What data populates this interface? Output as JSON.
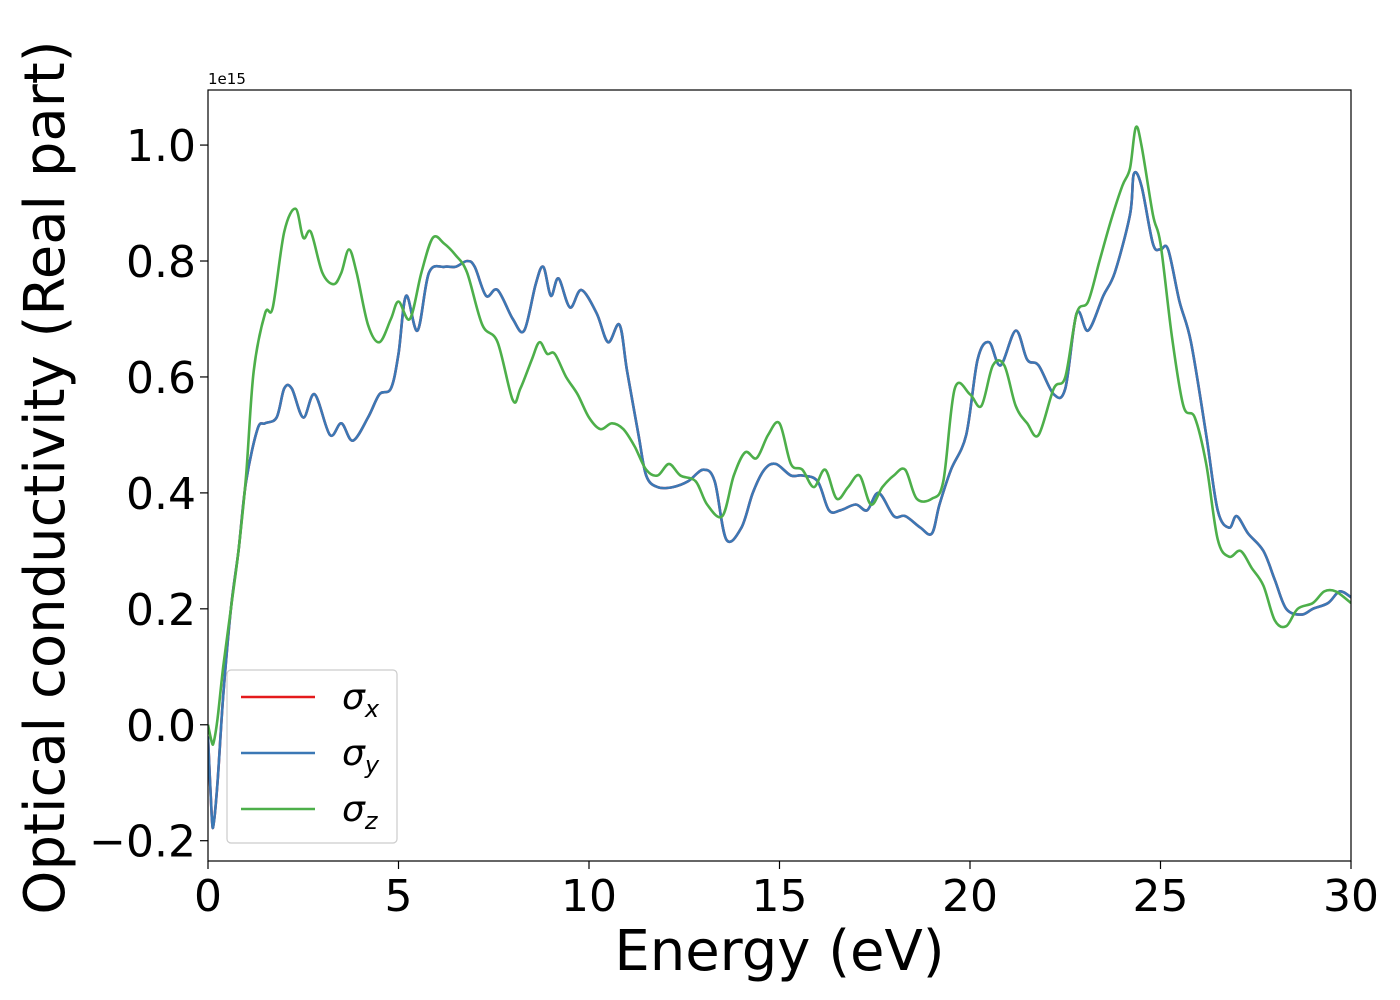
{
  "chart_data": {
    "type": "line",
    "title": "",
    "xlabel": "Energy (eV)",
    "ylabel": "Optical conductivity (Real part)",
    "y_offset_label": "1e15",
    "xlim": [
      0,
      30
    ],
    "ylim": [
      -0.235,
      1.095
    ],
    "xticks": [
      0,
      5,
      10,
      15,
      20,
      25,
      30
    ],
    "xtick_labels": [
      "0",
      "5",
      "10",
      "15",
      "20",
      "25",
      "30"
    ],
    "yticks": [
      -0.2,
      0.0,
      0.2,
      0.4,
      0.6,
      0.8,
      1.0
    ],
    "ytick_labels": [
      "−0.2",
      "0.0",
      "0.2",
      "0.4",
      "0.6",
      "0.8",
      "1.0"
    ],
    "grid": false,
    "legend_position": "lower-left",
    "series": [
      {
        "name": "σx",
        "legend_main": "σ",
        "legend_sub": "x",
        "color": "#e41a1c",
        "x": [
          0,
          0.1,
          0.15,
          0.25,
          0.4,
          0.6,
          0.8,
          1.0,
          1.3,
          1.5,
          1.8,
          2.0,
          2.2,
          2.5,
          2.8,
          3.2,
          3.5,
          3.8,
          4.2,
          4.5,
          4.8,
          5.0,
          5.2,
          5.5,
          5.8,
          6.2,
          6.5,
          6.8,
          7.0,
          7.3,
          7.6,
          8.0,
          8.3,
          8.6,
          8.8,
          9.0,
          9.2,
          9.5,
          9.8,
          10.2,
          10.5,
          10.8,
          11.0,
          11.3,
          11.5,
          11.8,
          12.2,
          12.6,
          13.0,
          13.3,
          13.6,
          14.0,
          14.3,
          14.6,
          14.9,
          15.3,
          15.6,
          16.0,
          16.3,
          16.6,
          17.0,
          17.3,
          17.6,
          18.0,
          18.3,
          18.7,
          19.0,
          19.2,
          19.5,
          19.9,
          20.2,
          20.5,
          20.8,
          21.2,
          21.5,
          21.8,
          22.2,
          22.5,
          22.8,
          23.1,
          23.5,
          23.8,
          24.2,
          24.3,
          24.5,
          24.8,
          25.0,
          25.2,
          25.5,
          25.8,
          26.2,
          26.5,
          26.8,
          27.0,
          27.3,
          27.7,
          28.0,
          28.3,
          28.7,
          29.0,
          29.4,
          29.7,
          30.0
        ],
        "y": [
          -0.02,
          -0.16,
          -0.17,
          -0.1,
          0.05,
          0.2,
          0.3,
          0.42,
          0.51,
          0.52,
          0.53,
          0.58,
          0.58,
          0.53,
          0.57,
          0.5,
          0.52,
          0.49,
          0.53,
          0.57,
          0.58,
          0.64,
          0.74,
          0.68,
          0.78,
          0.79,
          0.79,
          0.8,
          0.79,
          0.74,
          0.75,
          0.7,
          0.68,
          0.76,
          0.79,
          0.74,
          0.77,
          0.72,
          0.75,
          0.71,
          0.66,
          0.69,
          0.61,
          0.5,
          0.43,
          0.41,
          0.41,
          0.42,
          0.44,
          0.42,
          0.32,
          0.34,
          0.4,
          0.44,
          0.45,
          0.43,
          0.43,
          0.42,
          0.37,
          0.37,
          0.38,
          0.37,
          0.4,
          0.36,
          0.36,
          0.34,
          0.33,
          0.38,
          0.44,
          0.5,
          0.63,
          0.66,
          0.62,
          0.68,
          0.63,
          0.62,
          0.57,
          0.58,
          0.71,
          0.68,
          0.74,
          0.78,
          0.88,
          0.95,
          0.93,
          0.83,
          0.82,
          0.82,
          0.73,
          0.66,
          0.5,
          0.37,
          0.34,
          0.36,
          0.33,
          0.3,
          0.25,
          0.2,
          0.19,
          0.2,
          0.21,
          0.23,
          0.22
        ]
      },
      {
        "name": "σy",
        "legend_main": "σ",
        "legend_sub": "y",
        "color": "#3b78b5",
        "x": [
          0,
          0.1,
          0.15,
          0.25,
          0.4,
          0.6,
          0.8,
          1.0,
          1.3,
          1.5,
          1.8,
          2.0,
          2.2,
          2.5,
          2.8,
          3.2,
          3.5,
          3.8,
          4.2,
          4.5,
          4.8,
          5.0,
          5.2,
          5.5,
          5.8,
          6.2,
          6.5,
          6.8,
          7.0,
          7.3,
          7.6,
          8.0,
          8.3,
          8.6,
          8.8,
          9.0,
          9.2,
          9.5,
          9.8,
          10.2,
          10.5,
          10.8,
          11.0,
          11.3,
          11.5,
          11.8,
          12.2,
          12.6,
          13.0,
          13.3,
          13.6,
          14.0,
          14.3,
          14.6,
          14.9,
          15.3,
          15.6,
          16.0,
          16.3,
          16.6,
          17.0,
          17.3,
          17.6,
          18.0,
          18.3,
          18.7,
          19.0,
          19.2,
          19.5,
          19.9,
          20.2,
          20.5,
          20.8,
          21.2,
          21.5,
          21.8,
          22.2,
          22.5,
          22.8,
          23.1,
          23.5,
          23.8,
          24.2,
          24.3,
          24.5,
          24.8,
          25.0,
          25.2,
          25.5,
          25.8,
          26.2,
          26.5,
          26.8,
          27.0,
          27.3,
          27.7,
          28.0,
          28.3,
          28.7,
          29.0,
          29.4,
          29.7,
          30.0
        ],
        "y": [
          -0.02,
          -0.16,
          -0.17,
          -0.1,
          0.05,
          0.2,
          0.3,
          0.42,
          0.51,
          0.52,
          0.53,
          0.58,
          0.58,
          0.53,
          0.57,
          0.5,
          0.52,
          0.49,
          0.53,
          0.57,
          0.58,
          0.64,
          0.74,
          0.68,
          0.78,
          0.79,
          0.79,
          0.8,
          0.79,
          0.74,
          0.75,
          0.7,
          0.68,
          0.76,
          0.79,
          0.74,
          0.77,
          0.72,
          0.75,
          0.71,
          0.66,
          0.69,
          0.61,
          0.5,
          0.43,
          0.41,
          0.41,
          0.42,
          0.44,
          0.42,
          0.32,
          0.34,
          0.4,
          0.44,
          0.45,
          0.43,
          0.43,
          0.42,
          0.37,
          0.37,
          0.38,
          0.37,
          0.4,
          0.36,
          0.36,
          0.34,
          0.33,
          0.38,
          0.44,
          0.5,
          0.63,
          0.66,
          0.62,
          0.68,
          0.63,
          0.62,
          0.57,
          0.58,
          0.71,
          0.68,
          0.74,
          0.78,
          0.88,
          0.95,
          0.93,
          0.83,
          0.82,
          0.82,
          0.73,
          0.66,
          0.5,
          0.37,
          0.34,
          0.36,
          0.33,
          0.3,
          0.25,
          0.2,
          0.19,
          0.2,
          0.21,
          0.23,
          0.22
        ]
      },
      {
        "name": "σz",
        "legend_main": "σ",
        "legend_sub": "z",
        "color": "#4daf4a",
        "x": [
          0,
          0.1,
          0.15,
          0.25,
          0.4,
          0.6,
          0.8,
          1.0,
          1.2,
          1.5,
          1.7,
          2.0,
          2.3,
          2.5,
          2.7,
          3.0,
          3.3,
          3.5,
          3.7,
          3.9,
          4.2,
          4.5,
          4.8,
          5.0,
          5.3,
          5.6,
          5.9,
          6.2,
          6.5,
          6.8,
          7.2,
          7.6,
          8.0,
          8.2,
          8.5,
          8.7,
          8.9,
          9.1,
          9.4,
          9.7,
          10.0,
          10.3,
          10.6,
          10.9,
          11.2,
          11.5,
          11.8,
          12.1,
          12.4,
          12.8,
          13.1,
          13.5,
          13.8,
          14.1,
          14.4,
          14.7,
          15.0,
          15.3,
          15.6,
          15.9,
          16.2,
          16.5,
          16.8,
          17.1,
          17.4,
          17.7,
          18.0,
          18.3,
          18.6,
          19.0,
          19.3,
          19.6,
          20.0,
          20.3,
          20.6,
          20.9,
          21.2,
          21.5,
          21.8,
          22.2,
          22.5,
          22.8,
          23.1,
          23.4,
          23.7,
          24.0,
          24.2,
          24.35,
          24.5,
          24.8,
          25.0,
          25.3,
          25.6,
          25.9,
          26.2,
          26.5,
          26.8,
          27.1,
          27.4,
          27.7,
          28.0,
          28.3,
          28.6,
          29.0,
          29.3,
          29.6,
          30.0
        ],
        "y": [
          0.0,
          -0.03,
          -0.03,
          0.01,
          0.1,
          0.2,
          0.3,
          0.43,
          0.61,
          0.71,
          0.72,
          0.85,
          0.89,
          0.84,
          0.85,
          0.78,
          0.76,
          0.78,
          0.82,
          0.78,
          0.69,
          0.66,
          0.7,
          0.73,
          0.7,
          0.78,
          0.84,
          0.83,
          0.81,
          0.78,
          0.69,
          0.66,
          0.56,
          0.58,
          0.63,
          0.66,
          0.64,
          0.64,
          0.6,
          0.57,
          0.53,
          0.51,
          0.52,
          0.51,
          0.48,
          0.44,
          0.43,
          0.45,
          0.43,
          0.42,
          0.38,
          0.36,
          0.43,
          0.47,
          0.46,
          0.5,
          0.52,
          0.45,
          0.44,
          0.41,
          0.44,
          0.39,
          0.41,
          0.43,
          0.38,
          0.41,
          0.43,
          0.44,
          0.39,
          0.39,
          0.42,
          0.58,
          0.57,
          0.55,
          0.62,
          0.62,
          0.55,
          0.52,
          0.5,
          0.58,
          0.6,
          0.71,
          0.73,
          0.8,
          0.87,
          0.93,
          0.96,
          1.03,
          1.0,
          0.88,
          0.83,
          0.67,
          0.55,
          0.53,
          0.45,
          0.32,
          0.29,
          0.3,
          0.27,
          0.24,
          0.18,
          0.17,
          0.2,
          0.21,
          0.23,
          0.23,
          0.21
        ]
      }
    ]
  }
}
